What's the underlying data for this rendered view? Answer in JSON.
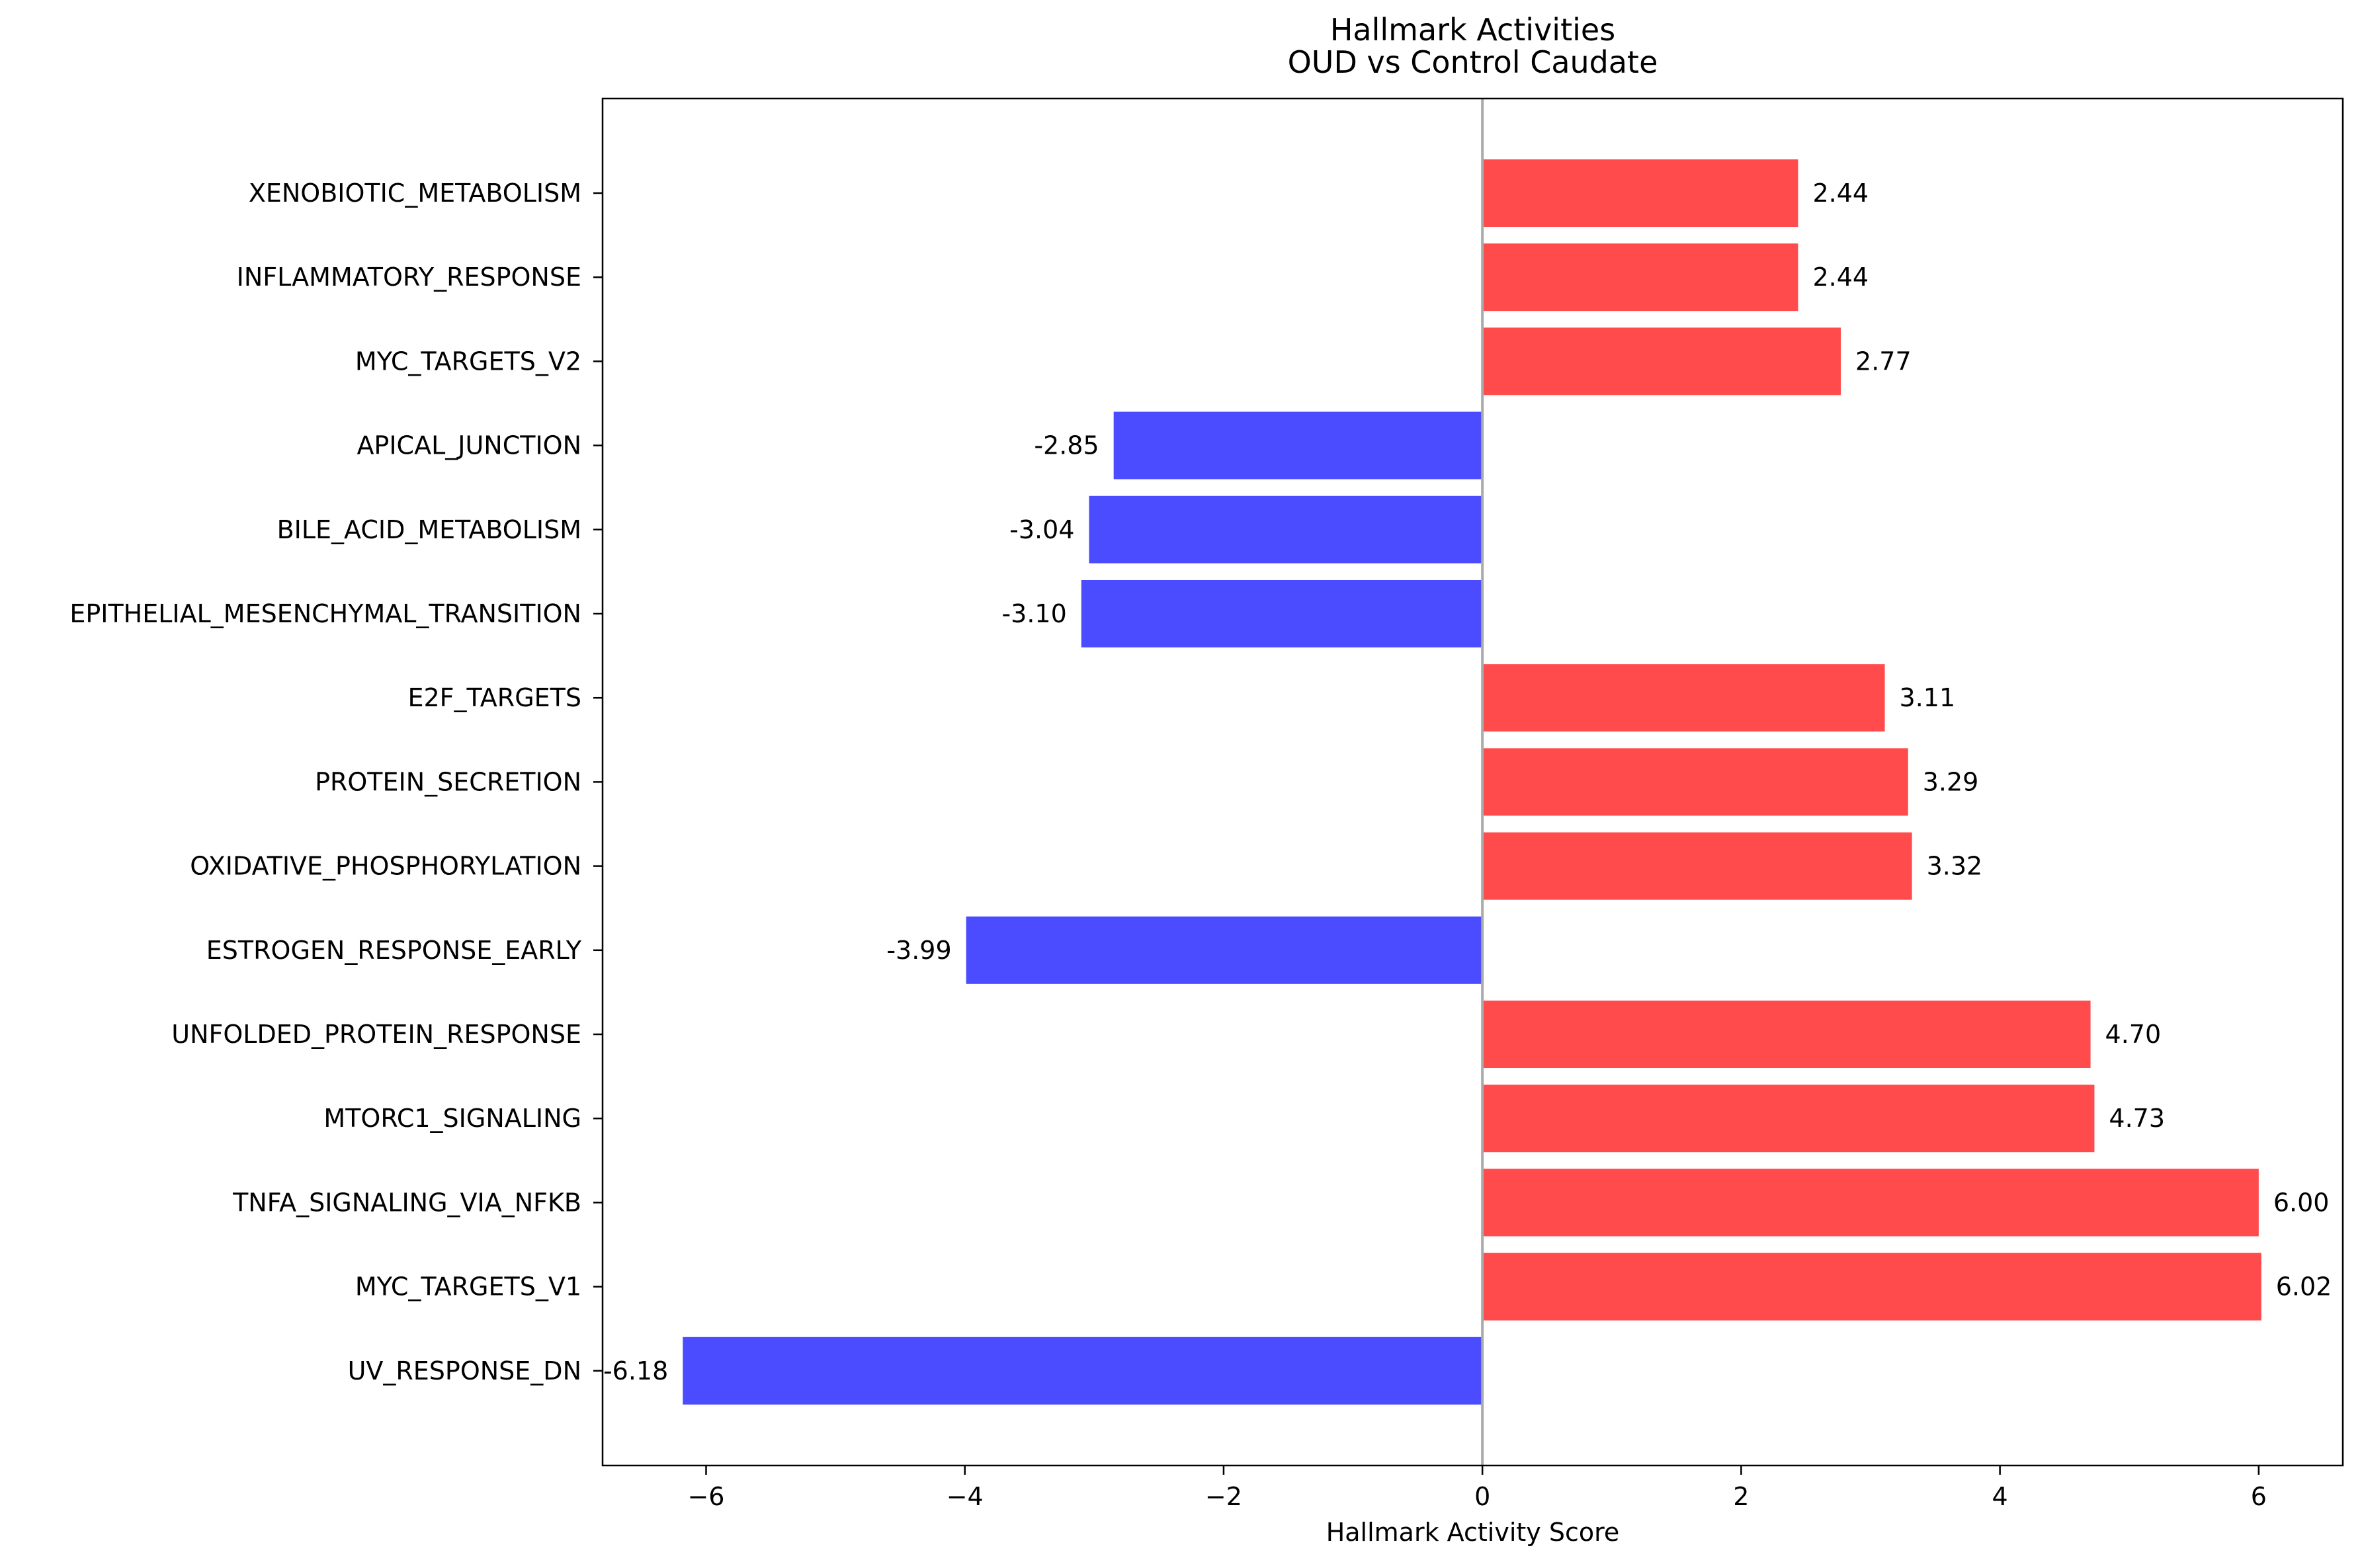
{
  "chart_data": {
    "type": "bar",
    "orientation": "horizontal",
    "title": "Hallmark Activities\nOUD vs Control Caudate",
    "title_lines": [
      "Hallmark Activities",
      "OUD vs Control Caudate"
    ],
    "xlabel": "Hallmark Activity Score",
    "ylabel": "",
    "xlim": [
      -6.8,
      6.65
    ],
    "xticks": [
      -6,
      -4,
      -2,
      0,
      2,
      4,
      6
    ],
    "xtick_labels": [
      "−6",
      "−4",
      "−2",
      "0",
      "2",
      "4",
      "6"
    ],
    "grid": false,
    "zero_line": true,
    "colors": {
      "positive": "#ff4b4b",
      "negative": "#4b4bff",
      "zero_line": "#aaaaaa",
      "axis": "#000000"
    },
    "categories": [
      "XENOBIOTIC_METABOLISM",
      "INFLAMMATORY_RESPONSE",
      "MYC_TARGETS_V2",
      "APICAL_JUNCTION",
      "BILE_ACID_METABOLISM",
      "EPITHELIAL_MESENCHYMAL_TRANSITION",
      "E2F_TARGETS",
      "PROTEIN_SECRETION",
      "OXIDATIVE_PHOSPHORYLATION",
      "ESTROGEN_RESPONSE_EARLY",
      "UNFOLDED_PROTEIN_RESPONSE",
      "MTORC1_SIGNALING",
      "TNFA_SIGNALING_VIA_NFKB",
      "MYC_TARGETS_V1",
      "UV_RESPONSE_DN"
    ],
    "values": [
      2.44,
      2.44,
      2.77,
      -2.85,
      -3.04,
      -3.1,
      3.11,
      3.29,
      3.32,
      -3.99,
      4.7,
      4.73,
      6.0,
      6.02,
      -6.18
    ],
    "value_labels": [
      "2.44",
      "2.44",
      "2.77",
      "-2.85",
      "-3.04",
      "-3.10",
      "3.11",
      "3.29",
      "3.32",
      "-3.99",
      "4.70",
      "4.73",
      "6.00",
      "6.02",
      "-6.18"
    ]
  }
}
